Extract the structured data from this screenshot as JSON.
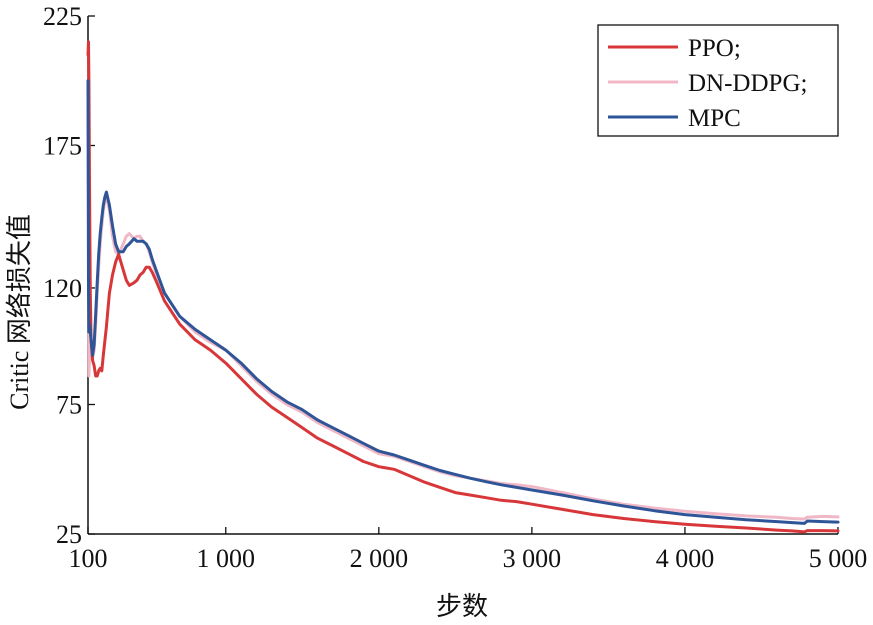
{
  "chart_data": {
    "type": "line",
    "title": "",
    "xlabel": "步数",
    "ylabel": "Critic 网络损失值",
    "xlim": [
      100,
      5000
    ],
    "ylim": [
      25,
      225
    ],
    "xticks": [
      100,
      1000,
      2000,
      3000,
      4000,
      5000
    ],
    "xtick_labels": [
      "100",
      "1 000",
      "2 000",
      "3 000",
      "4 000",
      "5 000"
    ],
    "yticks": [
      25,
      75,
      120,
      175,
      225
    ],
    "ytick_labels": [
      "25",
      "75",
      "120",
      "175",
      "225"
    ],
    "grid": false,
    "legend_position": "top-right",
    "series": [
      {
        "name": "PPO;",
        "color": "#d8373a",
        "x": [
          100,
          103,
          106,
          110,
          115,
          120,
          130,
          140,
          150,
          160,
          170,
          180,
          190,
          200,
          220,
          240,
          260,
          280,
          300,
          330,
          350,
          370,
          400,
          420,
          440,
          460,
          480,
          500,
          520,
          550,
          600,
          700,
          800,
          900,
          1000,
          1100,
          1200,
          1300,
          1400,
          1500,
          1600,
          1700,
          1800,
          1900,
          2000,
          2100,
          2200,
          2300,
          2400,
          2500,
          2600,
          2700,
          2800,
          2900,
          3000,
          3200,
          3400,
          3600,
          3800,
          4000,
          4200,
          4400,
          4600,
          4700,
          4780,
          4800,
          4900,
          5000
        ],
        "y": [
          210,
          215,
          200,
          160,
          118,
          100,
          92,
          90,
          86,
          86,
          88,
          89,
          88,
          94,
          105,
          118,
          125,
          130,
          133,
          127,
          123,
          121,
          122,
          123,
          125,
          126,
          128,
          128,
          126,
          122,
          115,
          106,
          100,
          96,
          91,
          85,
          79,
          74,
          70,
          66,
          62,
          59,
          56,
          53,
          51,
          50,
          47.5,
          45,
          43,
          41,
          40,
          39,
          38,
          37.5,
          36.5,
          34.5,
          32.5,
          31,
          29.8,
          28.8,
          28,
          27.3,
          26.5,
          26.2,
          25.8,
          26.3,
          26.3,
          26.2
        ]
      },
      {
        "name": "DN-DDPG;",
        "color": "#f0b8c6",
        "x": [
          100,
          103,
          106,
          110,
          115,
          120,
          130,
          140,
          150,
          160,
          170,
          180,
          190,
          200,
          210,
          220,
          240,
          260,
          280,
          300,
          330,
          350,
          370,
          400,
          420,
          440,
          460,
          480,
          500,
          520,
          550,
          600,
          700,
          800,
          900,
          1000,
          1100,
          1200,
          1300,
          1400,
          1500,
          1600,
          1700,
          1800,
          1900,
          2000,
          2100,
          2200,
          2300,
          2400,
          2500,
          2600,
          2700,
          2800,
          2900,
          3000,
          3200,
          3400,
          3600,
          3800,
          4000,
          4200,
          4400,
          4600,
          4700,
          4780,
          4800,
          4900,
          5000
        ],
        "y": [
          190,
          150,
          86,
          94,
          97,
          94,
          93,
          96,
          106,
          118,
          128,
          137,
          144,
          150,
          153,
          156,
          150,
          140,
          134,
          133,
          137,
          140,
          141,
          139,
          140,
          140,
          138,
          137,
          134,
          130,
          125,
          118,
          109,
          103,
          99,
          96,
          90,
          84,
          79,
          75,
          72,
          68,
          65,
          62,
          59,
          56,
          55,
          53,
          51,
          49,
          47.5,
          46.5,
          45.5,
          44.5,
          44,
          43.3,
          41,
          38.5,
          36.5,
          35,
          33.8,
          32.8,
          32,
          31.5,
          31,
          30.8,
          31.5,
          31.8,
          31.6
        ]
      },
      {
        "name": "MPC",
        "color": "#2e5597",
        "x": [
          100,
          103,
          106,
          110,
          115,
          120,
          130,
          140,
          150,
          160,
          170,
          180,
          190,
          200,
          210,
          220,
          240,
          260,
          280,
          300,
          330,
          350,
          370,
          400,
          420,
          440,
          460,
          480,
          500,
          520,
          550,
          600,
          700,
          800,
          900,
          1000,
          1100,
          1200,
          1300,
          1400,
          1500,
          1600,
          1700,
          1800,
          1900,
          2000,
          2100,
          2200,
          2300,
          2400,
          2500,
          2600,
          2700,
          2800,
          2900,
          3000,
          3200,
          3400,
          3600,
          3800,
          4000,
          4200,
          4400,
          4600,
          4700,
          4780,
          4800,
          4900,
          5000
        ],
        "y": [
          200,
          120,
          103,
          106,
          103,
          100,
          94,
          98,
          110,
          122,
          133,
          141,
          147,
          152,
          155,
          157,
          152,
          144,
          137,
          134,
          134,
          136,
          137,
          139,
          138,
          138,
          138,
          137,
          135,
          131,
          126,
          118,
          109,
          104,
          100,
          96,
          91,
          85,
          80,
          76,
          73,
          69,
          66,
          63,
          60,
          57,
          55.5,
          53.5,
          51.5,
          49.5,
          48,
          46.5,
          45.2,
          44,
          43,
          42,
          40,
          37.8,
          35.8,
          34,
          32.5,
          31.5,
          30.5,
          29.8,
          29.4,
          29.1,
          30,
          29.8,
          29.6
        ]
      }
    ]
  }
}
